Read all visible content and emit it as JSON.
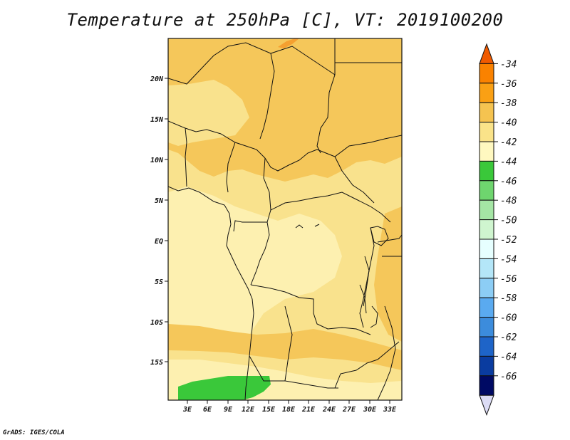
{
  "title": "Temperature at 250hPa [C], VT: 2019100200",
  "footer": "GrADS: IGES/COLA",
  "map": {
    "lat_labels": [
      "20N",
      "15N",
      "10N",
      "5N",
      "EQ",
      "5S",
      "10S",
      "15S"
    ],
    "lon_labels": [
      "3E",
      "6E",
      "9E",
      "12E",
      "15E",
      "18E",
      "21E",
      "24E",
      "27E",
      "30E",
      "33E"
    ]
  },
  "colorbar": {
    "labels": [
      "-34",
      "-36",
      "-38",
      "-40",
      "-42",
      "-44",
      "-46",
      "-48",
      "-50",
      "-52",
      "-54",
      "-56",
      "-58",
      "-60",
      "-62",
      "-64",
      "-66"
    ],
    "colors": [
      "#f05a00",
      "#fa8200",
      "#faa014",
      "#f5c350",
      "#fae389",
      "#fff8c0",
      "#3ac83a",
      "#6ed56e",
      "#a5e6a5",
      "#cff5cf",
      "#e6ffff",
      "#b4e6f8",
      "#8ccdf5",
      "#5aaaf0",
      "#3c8cdc",
      "#1e64c8",
      "#0a3ca0",
      "#000a64",
      "#dcdcf5"
    ]
  }
}
